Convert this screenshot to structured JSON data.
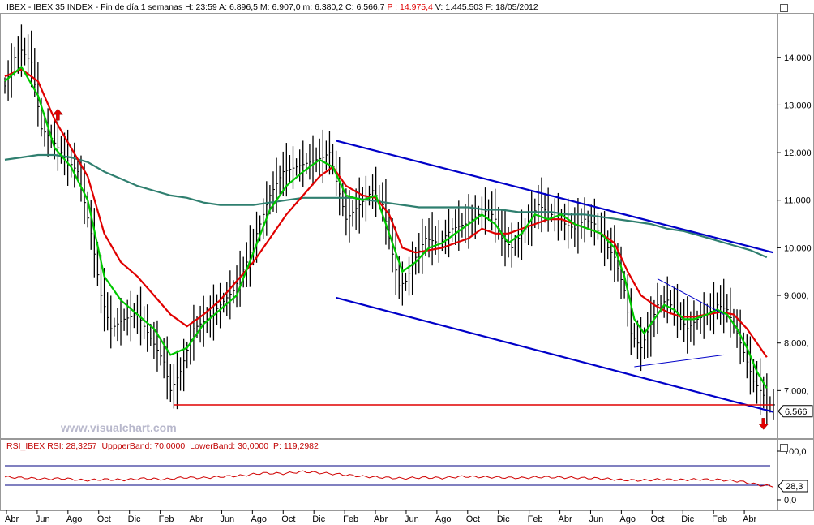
{
  "header": {
    "ticker": "IBEX",
    "separator": "-",
    "name": "IBEX 35 INDEX",
    "timeframe": "Fin de día 1 semanas",
    "fields": [
      {
        "label": "H:",
        "value": "23:59"
      },
      {
        "label": "A:",
        "value": "6.896,5"
      },
      {
        "label": "M:",
        "value": "6.907,0"
      },
      {
        "label": "m:",
        "value": "6.380,2"
      },
      {
        "label": "C:",
        "value": "6.566,7"
      },
      {
        "label": "P :",
        "value": "14.975,4"
      },
      {
        "label": "V:",
        "value": "1.445.503"
      },
      {
        "label": "F:",
        "value": "18/05/2012"
      }
    ]
  },
  "rsi_header": {
    "name": "RSI_IBEX",
    "rsi_label": "RSI:",
    "rsi_value": "28,3257",
    "upper_label": "UppperBand:",
    "upper_value": "70,0000",
    "lower_label": "LowerBand:",
    "lower_value": "30,0000",
    "p_label": "P:",
    "p_value": "119,2982"
  },
  "watermark": "www.visualchart.com",
  "colors": {
    "price_bars": "#000000",
    "ma_fast": "#00c800",
    "ma_slow": "#e00000",
    "ma_long": "#2f7f6f",
    "trendlines": "#0000c8",
    "support": "#e00000",
    "rsi_line": "#d00000",
    "rsi_bands": "#000080",
    "header_red": "#e00000"
  },
  "chart_data": [
    {
      "type": "bar",
      "description_series": "weekly OHLC price bars with moving averages",
      "price_ylim": [
        6000,
        14900
      ],
      "y_ticks": [
        "14.000",
        "13.000",
        "12.000",
        "11.000",
        "10.000",
        "9.000,",
        "8.000,",
        "7.000,"
      ],
      "y_tick_values": [
        14000,
        13000,
        12000,
        11000,
        10000,
        9000,
        8000,
        7000
      ],
      "last_price_label": "6.566",
      "last_price": 6566.7,
      "x_labels": [
        "Abr",
        "Jun",
        "Ago",
        "Oct",
        "Dic",
        "Feb",
        "Abr",
        "Jun",
        "Ago",
        "Oct",
        "Dic",
        "Feb",
        "Abr",
        "Jun",
        "Ago",
        "Oct",
        "Dic",
        "Feb",
        "Abr",
        "Jun",
        "Ago",
        "Oct",
        "Dic",
        "Feb",
        "Abr"
      ],
      "price_path": [
        [
          0,
          13400
        ],
        [
          3,
          14000
        ],
        [
          5,
          14150
        ],
        [
          8,
          13900
        ],
        [
          11,
          12500
        ],
        [
          14,
          12300
        ],
        [
          18,
          11900
        ],
        [
          22,
          11600
        ],
        [
          26,
          10300
        ],
        [
          29,
          9000
        ],
        [
          32,
          8300
        ],
        [
          36,
          8500
        ],
        [
          40,
          8600
        ],
        [
          44,
          8100
        ],
        [
          48,
          7600
        ],
        [
          50,
          7000
        ],
        [
          53,
          7400
        ],
        [
          57,
          8300
        ],
        [
          61,
          8500
        ],
        [
          65,
          8800
        ],
        [
          69,
          9100
        ],
        [
          73,
          9700
        ],
        [
          77,
          10500
        ],
        [
          80,
          11100
        ],
        [
          84,
          11600
        ],
        [
          88,
          11700
        ],
        [
          92,
          11800
        ],
        [
          96,
          11900
        ],
        [
          98,
          12000
        ],
        [
          100,
          11400
        ],
        [
          103,
          10600
        ],
        [
          107,
          10900
        ],
        [
          111,
          11200
        ],
        [
          114,
          10900
        ],
        [
          116,
          10200
        ],
        [
          119,
          9200
        ],
        [
          121,
          9300
        ],
        [
          124,
          9800
        ],
        [
          127,
          10200
        ],
        [
          131,
          10100
        ],
        [
          135,
          10400
        ],
        [
          139,
          10500
        ],
        [
          143,
          10700
        ],
        [
          146,
          10800
        ],
        [
          148,
          10600
        ],
        [
          150,
          10200
        ],
        [
          153,
          10000
        ],
        [
          157,
          10400
        ],
        [
          161,
          10900
        ],
        [
          165,
          10700
        ],
        [
          169,
          10500
        ],
        [
          172,
          10400
        ],
        [
          175,
          10600
        ],
        [
          178,
          10500
        ],
        [
          181,
          10100
        ],
        [
          184,
          9800
        ],
        [
          187,
          9100
        ],
        [
          189,
          8200
        ],
        [
          192,
          7900
        ],
        [
          195,
          8400
        ],
        [
          197,
          8800
        ],
        [
          200,
          8900
        ],
        [
          203,
          8600
        ],
        [
          206,
          8300
        ],
        [
          209,
          8500
        ],
        [
          212,
          8600
        ],
        [
          215,
          8800
        ],
        [
          218,
          8700
        ],
        [
          221,
          8200
        ],
        [
          223,
          7800
        ],
        [
          226,
          7200
        ],
        [
          229,
          6900
        ],
        [
          230,
          6700
        ]
      ],
      "ma_fast": [
        [
          0,
          13500
        ],
        [
          5,
          13800
        ],
        [
          10,
          13200
        ],
        [
          15,
          12100
        ],
        [
          20,
          11700
        ],
        [
          25,
          11000
        ],
        [
          30,
          9400
        ],
        [
          35,
          8900
        ],
        [
          40,
          8600
        ],
        [
          45,
          8300
        ],
        [
          50,
          7750
        ],
        [
          55,
          7900
        ],
        [
          60,
          8400
        ],
        [
          65,
          8700
        ],
        [
          70,
          9000
        ],
        [
          75,
          9900
        ],
        [
          80,
          10800
        ],
        [
          85,
          11300
        ],
        [
          90,
          11600
        ],
        [
          95,
          11850
        ],
        [
          99,
          11700
        ],
        [
          103,
          11100
        ],
        [
          108,
          11000
        ],
        [
          112,
          11100
        ],
        [
          116,
          10300
        ],
        [
          120,
          9500
        ],
        [
          124,
          9700
        ],
        [
          128,
          10000
        ],
        [
          132,
          10100
        ],
        [
          136,
          10300
        ],
        [
          140,
          10500
        ],
        [
          144,
          10700
        ],
        [
          148,
          10500
        ],
        [
          152,
          10100
        ],
        [
          156,
          10300
        ],
        [
          160,
          10700
        ],
        [
          164,
          10600
        ],
        [
          168,
          10700
        ],
        [
          172,
          10500
        ],
        [
          176,
          10400
        ],
        [
          180,
          10300
        ],
        [
          184,
          10000
        ],
        [
          187,
          9400
        ],
        [
          190,
          8500
        ],
        [
          193,
          8200
        ],
        [
          196,
          8500
        ],
        [
          199,
          8800
        ],
        [
          202,
          8700
        ],
        [
          205,
          8500
        ],
        [
          208,
          8500
        ],
        [
          212,
          8600
        ],
        [
          215,
          8700
        ],
        [
          218,
          8600
        ],
        [
          221,
          8300
        ],
        [
          224,
          7900
        ],
        [
          227,
          7400
        ],
        [
          230,
          7050
        ]
      ],
      "ma_slow": [
        [
          0,
          13600
        ],
        [
          5,
          13750
        ],
        [
          10,
          13500
        ],
        [
          15,
          12700
        ],
        [
          20,
          12100
        ],
        [
          25,
          11500
        ],
        [
          30,
          10300
        ],
        [
          35,
          9700
        ],
        [
          40,
          9400
        ],
        [
          45,
          9000
        ],
        [
          50,
          8600
        ],
        [
          55,
          8350
        ],
        [
          60,
          8600
        ],
        [
          65,
          8900
        ],
        [
          70,
          9300
        ],
        [
          75,
          9700
        ],
        [
          80,
          10200
        ],
        [
          85,
          10700
        ],
        [
          90,
          11100
        ],
        [
          95,
          11500
        ],
        [
          99,
          11700
        ],
        [
          103,
          11300
        ],
        [
          108,
          11100
        ],
        [
          112,
          11050
        ],
        [
          116,
          10700
        ],
        [
          120,
          10000
        ],
        [
          124,
          9900
        ],
        [
          128,
          9950
        ],
        [
          132,
          10000
        ],
        [
          136,
          10100
        ],
        [
          140,
          10200
        ],
        [
          144,
          10400
        ],
        [
          148,
          10300
        ],
        [
          152,
          10300
        ],
        [
          156,
          10400
        ],
        [
          160,
          10500
        ],
        [
          164,
          10600
        ],
        [
          168,
          10600
        ],
        [
          172,
          10500
        ],
        [
          176,
          10400
        ],
        [
          180,
          10300
        ],
        [
          184,
          10100
        ],
        [
          188,
          9500
        ],
        [
          192,
          9000
        ],
        [
          196,
          8800
        ],
        [
          200,
          8650
        ],
        [
          204,
          8550
        ],
        [
          208,
          8550
        ],
        [
          212,
          8600
        ],
        [
          216,
          8650
        ],
        [
          220,
          8600
        ],
        [
          224,
          8300
        ],
        [
          227,
          8000
        ],
        [
          230,
          7700
        ]
      ],
      "ma_long": [
        [
          0,
          11850
        ],
        [
          5,
          11900
        ],
        [
          10,
          11950
        ],
        [
          15,
          11950
        ],
        [
          20,
          11900
        ],
        [
          25,
          11800
        ],
        [
          30,
          11600
        ],
        [
          35,
          11450
        ],
        [
          40,
          11300
        ],
        [
          45,
          11200
        ],
        [
          50,
          11100
        ],
        [
          55,
          11050
        ],
        [
          60,
          10950
        ],
        [
          65,
          10900
        ],
        [
          70,
          10900
        ],
        [
          75,
          10900
        ],
        [
          80,
          10950
        ],
        [
          85,
          11000
        ],
        [
          90,
          11050
        ],
        [
          95,
          11050
        ],
        [
          100,
          11050
        ],
        [
          105,
          11050
        ],
        [
          110,
          11000
        ],
        [
          115,
          10950
        ],
        [
          120,
          10900
        ],
        [
          125,
          10850
        ],
        [
          130,
          10850
        ],
        [
          135,
          10850
        ],
        [
          140,
          10850
        ],
        [
          145,
          10800
        ],
        [
          150,
          10800
        ],
        [
          155,
          10750
        ],
        [
          160,
          10750
        ],
        [
          165,
          10750
        ],
        [
          170,
          10700
        ],
        [
          175,
          10700
        ],
        [
          180,
          10650
        ],
        [
          185,
          10600
        ],
        [
          190,
          10550
        ],
        [
          195,
          10500
        ],
        [
          200,
          10400
        ],
        [
          205,
          10350
        ],
        [
          210,
          10250
        ],
        [
          215,
          10150
        ],
        [
          220,
          10050
        ],
        [
          225,
          9950
        ],
        [
          230,
          9800
        ]
      ],
      "trendlines": [
        {
          "from": [
            100,
            12250
          ],
          "to": [
            232,
            9900
          ]
        },
        {
          "from": [
            100,
            8950
          ],
          "to": [
            232,
            6550
          ]
        },
        {
          "from": [
            197,
            9350
          ],
          "to": [
            217,
            8600
          ]
        },
        {
          "from": [
            190,
            7500
          ],
          "to": [
            217,
            7750
          ]
        }
      ],
      "support_line": {
        "from": [
          51,
          6700
        ],
        "to": [
          232,
          6700
        ]
      }
    },
    {
      "type": "line",
      "series": [
        {
          "name": "RSI",
          "last": 28.3257
        }
      ],
      "ylim": [
        0,
        100
      ],
      "y_ticks": [
        "100,0",
        "0,0"
      ],
      "y_tick_values": [
        100,
        0
      ],
      "bands": [
        70,
        30
      ],
      "last_label": "28,3",
      "values": [
        [
          0,
          47
        ],
        [
          6,
          45
        ],
        [
          12,
          43
        ],
        [
          18,
          44
        ],
        [
          24,
          40
        ],
        [
          30,
          42
        ],
        [
          36,
          41
        ],
        [
          42,
          44
        ],
        [
          48,
          42
        ],
        [
          54,
          46
        ],
        [
          60,
          45
        ],
        [
          66,
          48
        ],
        [
          72,
          50
        ],
        [
          78,
          55
        ],
        [
          84,
          54
        ],
        [
          90,
          58
        ],
        [
          96,
          55
        ],
        [
          102,
          52
        ],
        [
          108,
          48
        ],
        [
          114,
          46
        ],
        [
          120,
          44
        ],
        [
          126,
          46
        ],
        [
          132,
          45
        ],
        [
          138,
          48
        ],
        [
          144,
          47
        ],
        [
          150,
          46
        ],
        [
          156,
          45
        ],
        [
          162,
          47
        ],
        [
          168,
          46
        ],
        [
          174,
          45
        ],
        [
          180,
          44
        ],
        [
          186,
          41
        ],
        [
          192,
          40
        ],
        [
          198,
          42
        ],
        [
          204,
          41
        ],
        [
          210,
          42
        ],
        [
          216,
          41
        ],
        [
          222,
          38
        ],
        [
          228,
          30
        ],
        [
          232,
          28
        ]
      ]
    }
  ]
}
